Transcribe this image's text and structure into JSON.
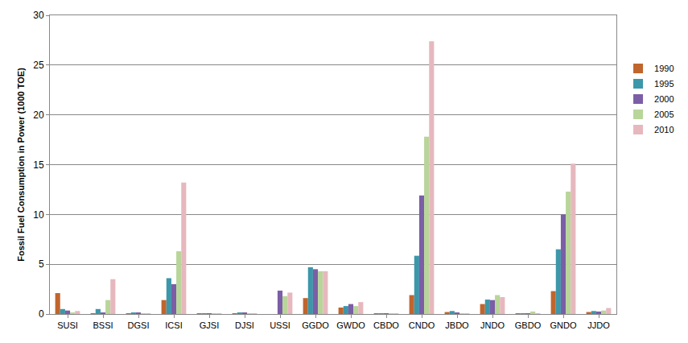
{
  "chart_data": {
    "type": "bar",
    "y_label": "Fossil Fuel Consumption in Power (1000 TOE)",
    "categories": [
      "SUSI",
      "BSSI",
      "DGSI",
      "ICSI",
      "GJSI",
      "DJSI",
      "USSI",
      "GGDO",
      "GWDO",
      "CBDO",
      "CNDO",
      "JBDO",
      "JNDO",
      "GBDO",
      "GNDO",
      "JJDO"
    ],
    "series": [
      {
        "name": "1990",
        "color": "#c0652d",
        "values": [
          2.1,
          0.05,
          0.05,
          1.4,
          0.05,
          0.05,
          0,
          1.6,
          0.65,
          0.05,
          1.9,
          0.2,
          1.0,
          0.05,
          2.3,
          0.2
        ]
      },
      {
        "name": "1995",
        "color": "#3c97a9",
        "values": [
          0.5,
          0.5,
          0.1,
          3.6,
          0.05,
          0.1,
          0,
          4.7,
          0.8,
          0.05,
          5.85,
          0.3,
          1.45,
          0.05,
          6.5,
          0.3
        ]
      },
      {
        "name": "2000",
        "color": "#7b5ea6",
        "values": [
          0.35,
          0.1,
          0.1,
          3.0,
          0.05,
          0.15,
          2.35,
          4.5,
          1.0,
          0.05,
          11.9,
          0.15,
          1.4,
          0.05,
          10.0,
          0.25
        ]
      },
      {
        "name": "2005",
        "color": "#b8d59a",
        "values": [
          0.15,
          1.4,
          0.05,
          6.3,
          0.05,
          0.05,
          1.8,
          4.3,
          0.8,
          0.05,
          17.8,
          0.05,
          1.9,
          0.25,
          12.3,
          0.35
        ]
      },
      {
        "name": "2010",
        "color": "#e6b8bd",
        "values": [
          0.3,
          3.5,
          0.05,
          13.2,
          0.05,
          0.05,
          2.15,
          4.3,
          1.2,
          0.05,
          27.4,
          0.05,
          1.7,
          0.05,
          15.1,
          0.6
        ]
      }
    ],
    "ylim": [
      0,
      30
    ],
    "yticks": [
      0,
      5,
      10,
      15,
      20,
      25,
      30
    ],
    "grid": true,
    "legend": "right"
  }
}
